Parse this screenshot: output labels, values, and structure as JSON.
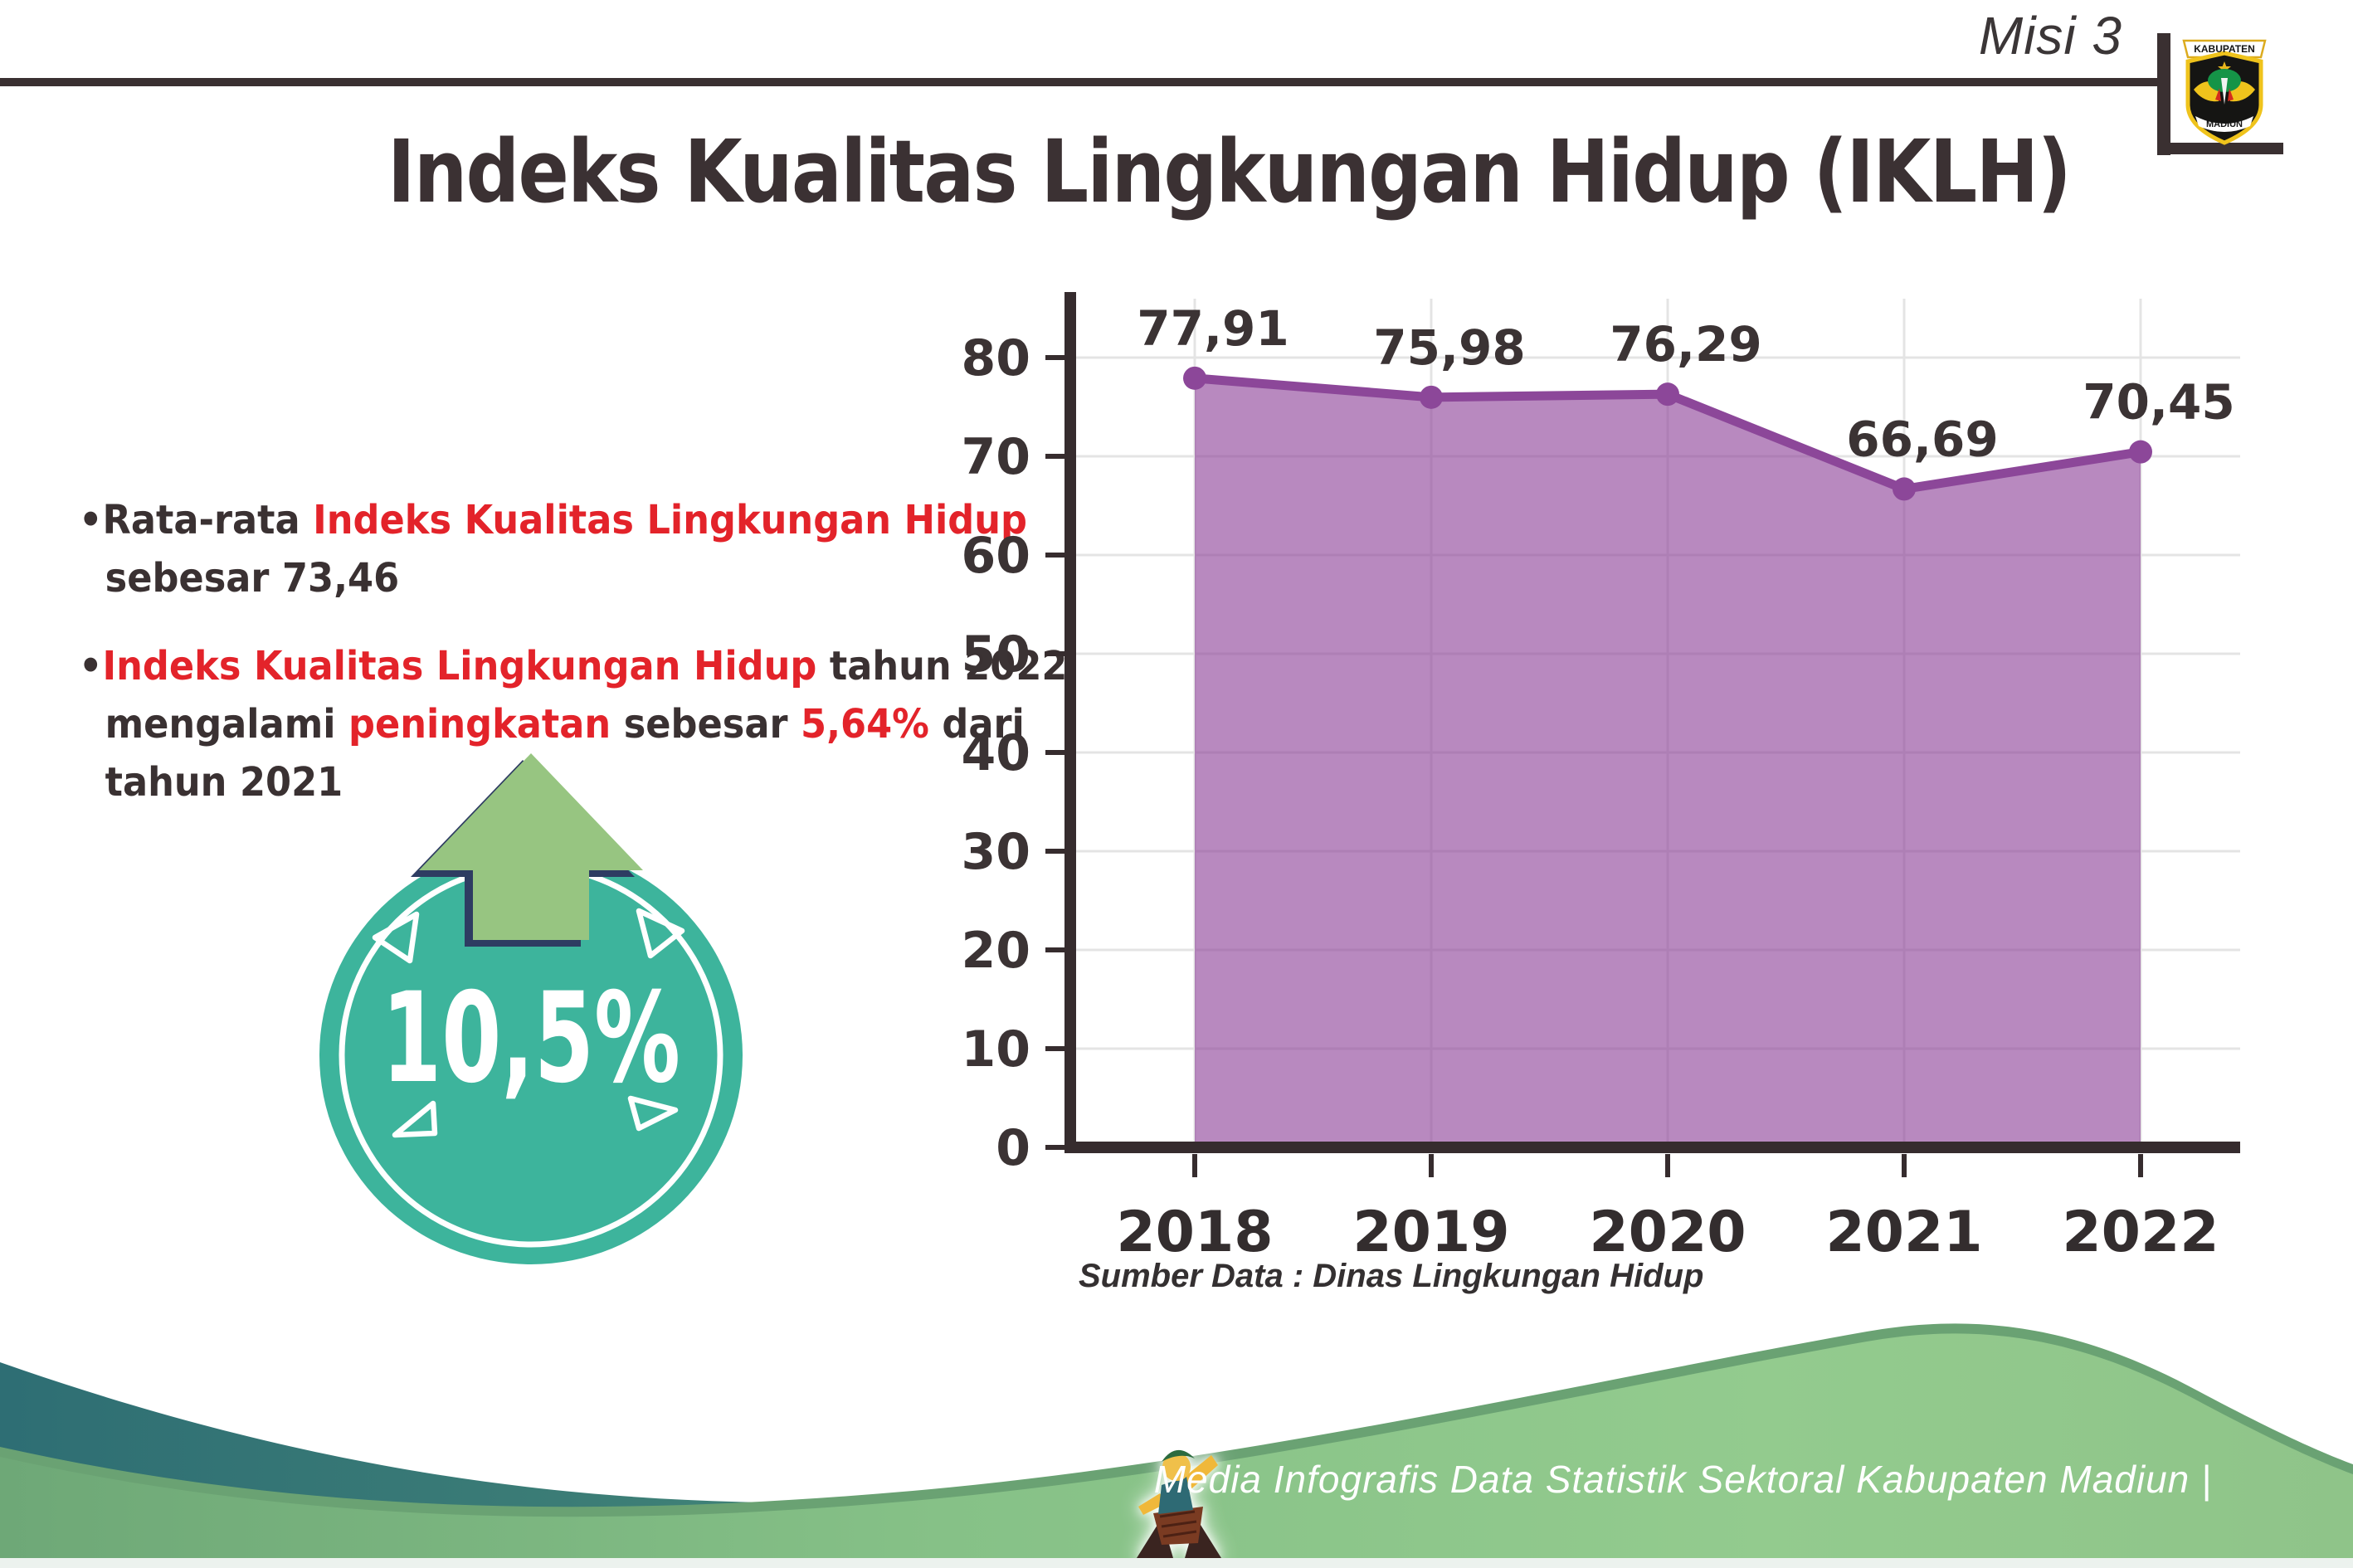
{
  "header": {
    "misi": "Misi 3",
    "title": "Indeks Kualitas Lingkungan Hidup (IKLH)",
    "logo_top": "KABUPATEN",
    "logo_bottom": "MADIUN"
  },
  "bullets": {
    "dot": "•",
    "b1_l1_dark": "Rata-rata ",
    "b1_l1_red": "Indeks Kualitas Lingkungan Hidup",
    "b1_l2": "sebesar 73,46",
    "b2_l1_red": "Indeks Kualitas Lingkungan Hidup",
    "b2_l1_dark": " tahun 2022",
    "b2_l2_d1": "mengalami ",
    "b2_l2_r1": "peningkatan",
    "b2_l2_d2": " sebesar ",
    "b2_l2_r2": "5,64%",
    "b2_l2_d3": " dari",
    "b2_l3": "tahun 2021"
  },
  "badge": {
    "value": "10,5%"
  },
  "chart_data": {
    "type": "area",
    "categories": [
      "2018",
      "2019",
      "2020",
      "2021",
      "2022"
    ],
    "values": [
      77.91,
      75.98,
      76.29,
      66.69,
      70.45
    ],
    "value_labels": [
      "77,91",
      "75,98",
      "76,29",
      "66,69",
      "70,45"
    ],
    "title": "",
    "xlabel": "",
    "ylabel": "",
    "ylim": [
      0,
      80
    ],
    "yticks": [
      0,
      10,
      20,
      30,
      40,
      50,
      60,
      70,
      80
    ],
    "grid": true,
    "legend": false,
    "source": "Sumber Data : Dinas Lingkungan Hidup",
    "area_color": "#8c4098",
    "line_color": "#8c4799",
    "label_color": "#3b3334",
    "axis_color": "#362c2e",
    "grid_color": "#e4e4e4"
  },
  "footer": {
    "credit": "Media Infografis Data Statistik Sektoral Kabupaten Madiun |"
  },
  "colors": {
    "accent_red": "#e3232a",
    "dark_text": "#3a3132",
    "badge_teal": "#3db49c",
    "arrow_green": "#97c581",
    "arrow_outline_navy": "#2e3c62",
    "footer_teal_dark": "#2e6e74",
    "footer_green_light": "#93cb8e",
    "rule_dark": "#3a3031"
  }
}
